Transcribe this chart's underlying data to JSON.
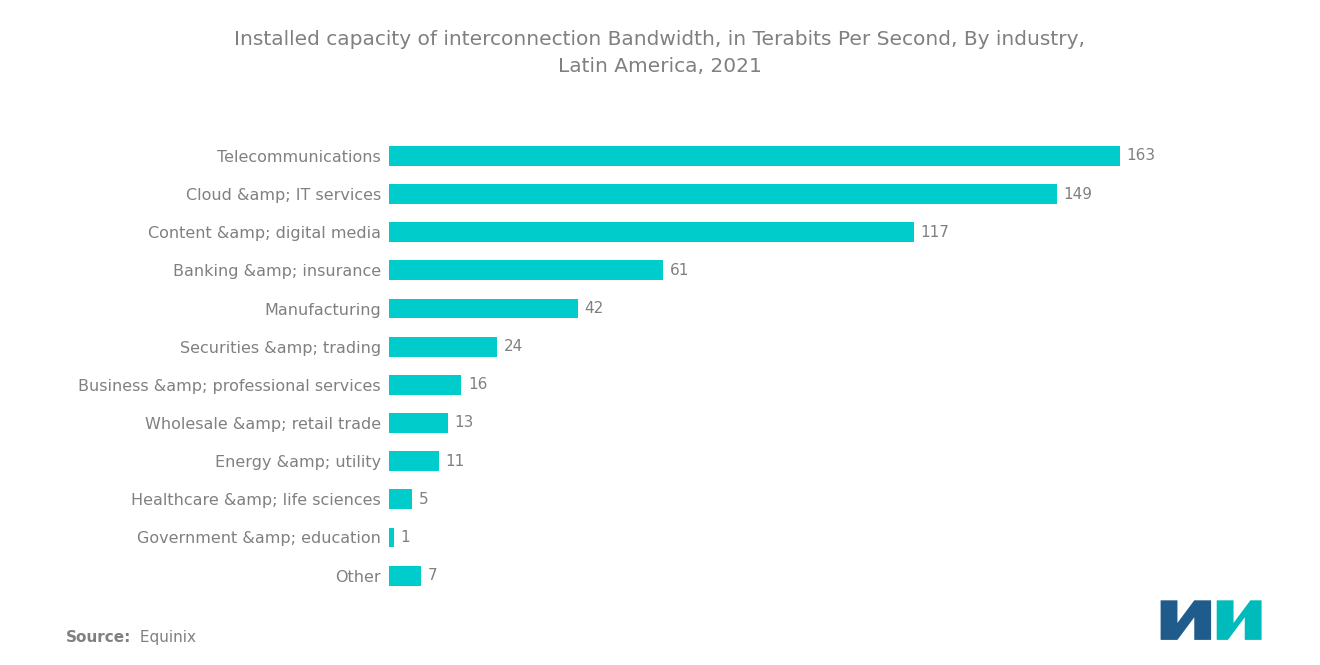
{
  "title_line1": "Installed capacity of interconnection Bandwidth, in Terabits Per Second, By industry,",
  "title_line2": "Latin America, 2021",
  "categories": [
    "Other",
    "Government &amp; education",
    "Healthcare &amp; life sciences",
    "Energy &amp; utility",
    "Wholesale &amp; retail trade",
    "Business &amp; professional services",
    "Securities &amp; trading",
    "Manufacturing",
    "Banking &amp; insurance",
    "Content &amp; digital media",
    "Cloud &amp; IT services",
    "Telecommunications"
  ],
  "values": [
    7,
    1,
    5,
    11,
    13,
    16,
    24,
    42,
    61,
    117,
    149,
    163
  ],
  "bar_color": "#00CCCC",
  "background_color": "#FFFFFF",
  "title_color": "#808080",
  "label_color": "#808080",
  "value_color": "#808080",
  "source_bold": "Source:",
  "source_regular": " Equinix",
  "title_fontsize": 14.5,
  "label_fontsize": 11.5,
  "value_fontsize": 11,
  "source_fontsize": 11,
  "xlim_max": 190
}
